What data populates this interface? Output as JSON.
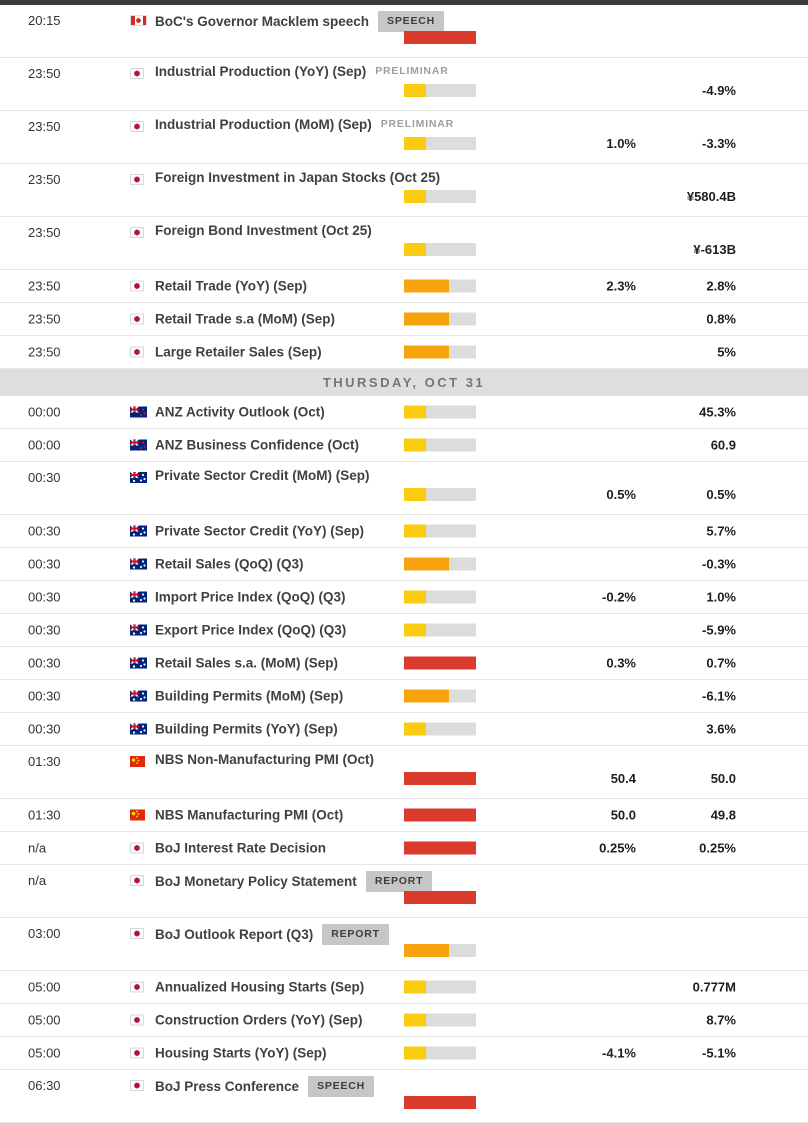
{
  "colors": {
    "top_bar": "#3a3a3a",
    "importance_low": "#f9cd0d",
    "importance_medium": "#f6a30e",
    "importance_high": "#d93a2b",
    "bar_track": "#dcdcdc",
    "day_header_bg": "#dedede",
    "badge_bg": "#c6c6c6"
  },
  "day1": {
    "events": [
      {
        "time": "20:15",
        "country": "canada",
        "flag": "ca",
        "title": "BoC's Governor Macklem speech",
        "badge": "SPEECH",
        "badge_style": "boxed",
        "importance": "high",
        "layout": "two-line",
        "forecast": "",
        "previous": ""
      },
      {
        "time": "23:50",
        "country": "japan",
        "flag": "jp",
        "title": "Industrial Production (YoY) (Sep)",
        "badge": "PRELIMINAR",
        "badge_style": "plain",
        "importance": "low",
        "layout": "two-line",
        "forecast": "",
        "previous": "-4.9%"
      },
      {
        "time": "23:50",
        "country": "japan",
        "flag": "jp",
        "title": "Industrial Production (MoM) (Sep)",
        "badge": "PRELIMINAR",
        "badge_style": "plain",
        "importance": "low",
        "layout": "two-line",
        "forecast": "1.0%",
        "previous": "-3.3%"
      },
      {
        "time": "23:50",
        "country": "japan",
        "flag": "jp",
        "title": "Foreign Investment in Japan Stocks (Oct 25)",
        "badge": "",
        "badge_style": "",
        "importance": "low",
        "layout": "two-line",
        "forecast": "",
        "previous": "¥580.4B"
      },
      {
        "time": "23:50",
        "country": "japan",
        "flag": "jp",
        "title": "Foreign Bond Investment (Oct 25)",
        "badge": "",
        "badge_style": "",
        "importance": "low",
        "layout": "two-line",
        "forecast": "",
        "previous": "¥-613B"
      },
      {
        "time": "23:50",
        "country": "japan",
        "flag": "jp",
        "title": "Retail Trade (YoY) (Sep)",
        "badge": "",
        "badge_style": "",
        "importance": "medium",
        "layout": "one-line",
        "forecast": "2.3%",
        "previous": "2.8%"
      },
      {
        "time": "23:50",
        "country": "japan",
        "flag": "jp",
        "title": "Retail Trade s.a (MoM) (Sep)",
        "badge": "",
        "badge_style": "",
        "importance": "medium",
        "layout": "one-line",
        "forecast": "",
        "previous": "0.8%"
      },
      {
        "time": "23:50",
        "country": "japan",
        "flag": "jp",
        "title": "Large Retailer Sales (Sep)",
        "badge": "",
        "badge_style": "",
        "importance": "medium",
        "layout": "one-line",
        "forecast": "",
        "previous": "5%"
      }
    ]
  },
  "day2": {
    "header": "THURSDAY, OCT 31",
    "events": [
      {
        "time": "00:00",
        "country": "new-zealand",
        "flag": "nz",
        "title": "ANZ Activity Outlook (Oct)",
        "badge": "",
        "badge_style": "",
        "importance": "low",
        "layout": "one-line",
        "forecast": "",
        "previous": "45.3%"
      },
      {
        "time": "00:00",
        "country": "new-zealand",
        "flag": "nz",
        "title": "ANZ Business Confidence (Oct)",
        "badge": "",
        "badge_style": "",
        "importance": "low",
        "layout": "one-line",
        "forecast": "",
        "previous": "60.9"
      },
      {
        "time": "00:30",
        "country": "australia",
        "flag": "au",
        "title": "Private Sector Credit (MoM) (Sep)",
        "badge": "",
        "badge_style": "",
        "importance": "low",
        "layout": "two-line",
        "forecast": "0.5%",
        "previous": "0.5%"
      },
      {
        "time": "00:30",
        "country": "australia",
        "flag": "au",
        "title": "Private Sector Credit (YoY) (Sep)",
        "badge": "",
        "badge_style": "",
        "importance": "low",
        "layout": "one-line",
        "forecast": "",
        "previous": "5.7%"
      },
      {
        "time": "00:30",
        "country": "australia",
        "flag": "au",
        "title": "Retail Sales (QoQ) (Q3)",
        "badge": "",
        "badge_style": "",
        "importance": "medium",
        "layout": "one-line",
        "forecast": "",
        "previous": "-0.3%"
      },
      {
        "time": "00:30",
        "country": "australia",
        "flag": "au",
        "title": "Import Price Index (QoQ) (Q3)",
        "badge": "",
        "badge_style": "",
        "importance": "low",
        "layout": "one-line",
        "forecast": "-0.2%",
        "previous": "1.0%"
      },
      {
        "time": "00:30",
        "country": "australia",
        "flag": "au",
        "title": "Export Price Index (QoQ) (Q3)",
        "badge": "",
        "badge_style": "",
        "importance": "low",
        "layout": "one-line",
        "forecast": "",
        "previous": "-5.9%"
      },
      {
        "time": "00:30",
        "country": "australia",
        "flag": "au",
        "title": "Retail Sales s.a. (MoM) (Sep)",
        "badge": "",
        "badge_style": "",
        "importance": "high",
        "layout": "one-line",
        "forecast": "0.3%",
        "previous": "0.7%"
      },
      {
        "time": "00:30",
        "country": "australia",
        "flag": "au",
        "title": "Building Permits (MoM) (Sep)",
        "badge": "",
        "badge_style": "",
        "importance": "medium",
        "layout": "one-line",
        "forecast": "",
        "previous": "-6.1%"
      },
      {
        "time": "00:30",
        "country": "australia",
        "flag": "au",
        "title": "Building Permits (YoY) (Sep)",
        "badge": "",
        "badge_style": "",
        "importance": "low",
        "layout": "one-line",
        "forecast": "",
        "previous": "3.6%"
      },
      {
        "time": "01:30",
        "country": "china",
        "flag": "cn",
        "title": "NBS Non-Manufacturing PMI (Oct)",
        "badge": "",
        "badge_style": "",
        "importance": "high",
        "layout": "two-line",
        "forecast": "50.4",
        "previous": "50.0"
      },
      {
        "time": "01:30",
        "country": "china",
        "flag": "cn",
        "title": "NBS Manufacturing PMI (Oct)",
        "badge": "",
        "badge_style": "",
        "importance": "high",
        "layout": "one-line",
        "forecast": "50.0",
        "previous": "49.8"
      },
      {
        "time": "n/a",
        "country": "japan",
        "flag": "jp",
        "title": "BoJ Interest Rate Decision",
        "badge": "",
        "badge_style": "",
        "importance": "high",
        "layout": "one-line",
        "forecast": "0.25%",
        "previous": "0.25%"
      },
      {
        "time": "n/a",
        "country": "japan",
        "flag": "jp",
        "title": "BoJ Monetary Policy Statement",
        "badge": "REPORT",
        "badge_style": "boxed",
        "importance": "high",
        "layout": "two-line",
        "forecast": "",
        "previous": ""
      },
      {
        "time": "03:00",
        "country": "japan",
        "flag": "jp",
        "title": "BoJ Outlook Report (Q3)",
        "badge": "REPORT",
        "badge_style": "boxed",
        "importance": "medium",
        "layout": "two-line",
        "forecast": "",
        "previous": ""
      },
      {
        "time": "05:00",
        "country": "japan",
        "flag": "jp",
        "title": "Annualized Housing Starts (Sep)",
        "badge": "",
        "badge_style": "",
        "importance": "low",
        "layout": "one-line",
        "forecast": "",
        "previous": "0.777M"
      },
      {
        "time": "05:00",
        "country": "japan",
        "flag": "jp",
        "title": "Construction Orders (YoY) (Sep)",
        "badge": "",
        "badge_style": "",
        "importance": "low",
        "layout": "one-line",
        "forecast": "",
        "previous": "8.7%"
      },
      {
        "time": "05:00",
        "country": "japan",
        "flag": "jp",
        "title": "Housing Starts (YoY) (Sep)",
        "badge": "",
        "badge_style": "",
        "importance": "low",
        "layout": "one-line",
        "forecast": "-4.1%",
        "previous": "-5.1%"
      },
      {
        "time": "06:30",
        "country": "japan",
        "flag": "jp",
        "title": "BoJ Press Conference",
        "badge": "SPEECH",
        "badge_style": "boxed",
        "importance": "high",
        "layout": "two-line",
        "forecast": "",
        "previous": ""
      }
    ]
  }
}
